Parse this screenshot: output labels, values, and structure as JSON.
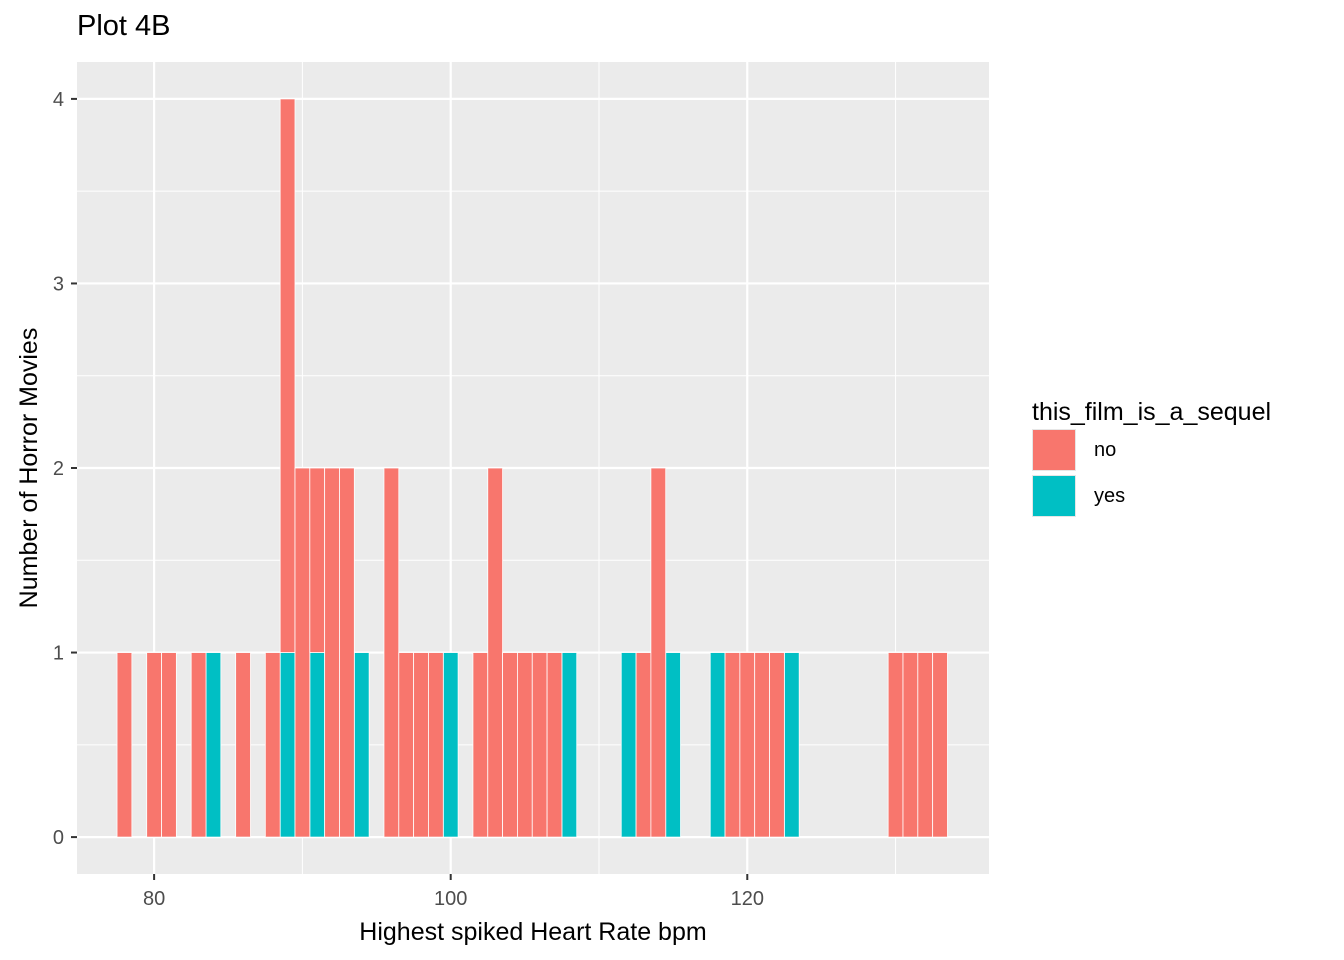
{
  "chart_data": {
    "type": "bar",
    "title": "Plot 4B",
    "xlabel": "Highest spiked Heart Rate bpm",
    "ylabel": "Number of Horror Movies",
    "xlim": [
      74.8,
      136.3
    ],
    "ylim": [
      -0.2,
      4.2
    ],
    "xticks": [
      80,
      100,
      120
    ],
    "yticks": [
      0,
      1,
      2,
      3,
      4
    ],
    "bar_width": 1,
    "grid": true,
    "legend": {
      "title": "this_film_is_a_sequel",
      "position": "right",
      "entries": [
        {
          "label": "no",
          "color": "#F8766D"
        },
        {
          "label": "yes",
          "color": "#00BFC4"
        }
      ]
    },
    "series": [
      {
        "name": "no",
        "color": "#F8766D",
        "x": [
          78,
          80,
          81,
          83,
          86,
          88,
          89,
          90,
          91,
          92,
          93,
          96,
          97,
          98,
          99,
          102,
          103,
          104,
          105,
          106,
          107,
          113,
          114,
          119,
          120,
          121,
          122,
          130,
          131,
          132,
          133
        ],
        "values": [
          1,
          1,
          1,
          1,
          1,
          1,
          3,
          2,
          1,
          2,
          2,
          2,
          1,
          1,
          1,
          1,
          2,
          1,
          1,
          1,
          1,
          1,
          2,
          1,
          1,
          1,
          1,
          1,
          1,
          1,
          1
        ]
      },
      {
        "name": "yes",
        "color": "#00BFC4",
        "x": [
          84,
          89,
          91,
          94,
          100,
          108,
          112,
          115,
          118,
          123
        ],
        "values": [
          1,
          1,
          1,
          1,
          1,
          1,
          1,
          1,
          1,
          1
        ]
      }
    ]
  }
}
